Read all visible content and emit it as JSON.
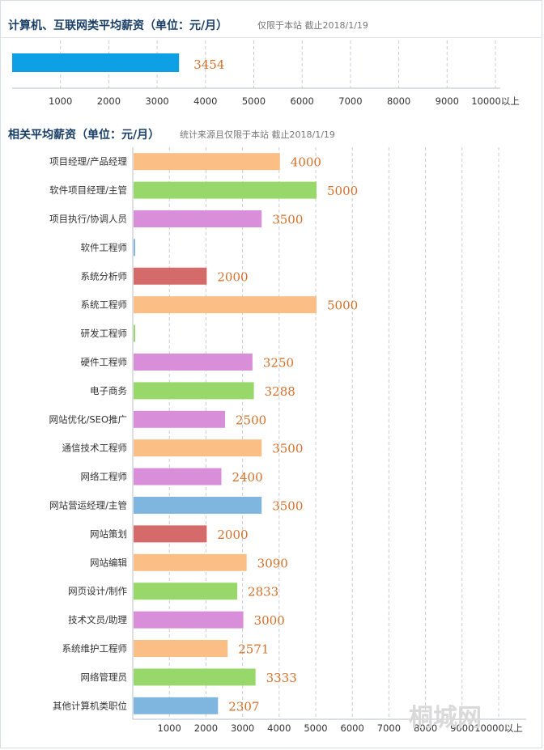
{
  "chart_data": [
    {
      "type": "bar",
      "orientation": "horizontal",
      "title": "计算机、互联网类平均薪资（单位：元/月）",
      "subtitle": "仅限于本站  截止2018/1/19",
      "categories": [
        ""
      ],
      "values": [
        3454
      ],
      "tick_labels": [
        "1000",
        "2000",
        "3000",
        "4000",
        "5000",
        "6000",
        "7000",
        "8000",
        "9000",
        "10000以上"
      ],
      "xlim": [
        0,
        10000
      ],
      "grid": true,
      "bar_colors": [
        "#0ea0e4"
      ]
    },
    {
      "type": "bar",
      "orientation": "horizontal",
      "title": "相关平均薪资（单位：元/月）",
      "subtitle": "统计来源且仅限于本站  截止2018/1/19",
      "categories": [
        "项目经理/产品经理",
        "软件项目经理/主管",
        "项目执行/协调人员",
        "软件工程师",
        "系统分析师",
        "系统工程师",
        "研发工程师",
        "硬件工程师",
        "电子商务",
        "网站优化/SEO推广",
        "通信技术工程师",
        "网络工程师",
        "网站营运经理/主管",
        "网站策划",
        "网站编辑",
        "网页设计/制作",
        "技术文员/助理",
        "系统维护工程师",
        "网络管理员",
        "其他计算机类职位"
      ],
      "values": [
        4000,
        5000,
        3500,
        null,
        2000,
        5000,
        null,
        3250,
        3288,
        2500,
        3500,
        2400,
        3500,
        2000,
        3090,
        2833,
        3000,
        2571,
        3333,
        2307
      ],
      "value_labels": [
        "4000",
        "5000",
        "3500",
        "",
        "2000",
        "5000",
        "",
        "3250",
        "3288",
        "2500",
        "3500",
        "2400",
        "3500",
        "2000",
        "3090",
        "2833",
        "3000",
        "2571",
        "3333",
        "2307"
      ],
      "tick_labels": [
        "1000",
        "2000",
        "3000",
        "4000",
        "5000",
        "6000",
        "7000",
        "8000",
        "9000",
        "10000以上"
      ],
      "xlim": [
        0,
        10000
      ],
      "grid": true,
      "bar_colors": [
        "#fbbf85",
        "#98d86a",
        "#d88ed8",
        "#7fb6e0",
        "#d46a6a",
        "#fbbf85",
        "#98d86a",
        "#d88ed8",
        "#98d86a",
        "#d88ed8",
        "#fbbf85",
        "#d88ed8",
        "#7fb6e0",
        "#d46a6a",
        "#fbbf85",
        "#98d86a",
        "#d88ed8",
        "#fbbf85",
        "#98d86a",
        "#7fb6e0"
      ]
    }
  ],
  "watermark": "桐城网"
}
